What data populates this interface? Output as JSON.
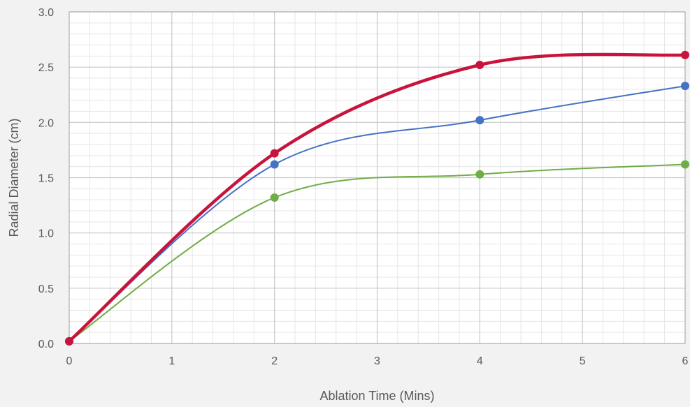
{
  "chart_data": {
    "type": "line",
    "title": "",
    "xlabel": "Ablation Time (Mins)",
    "ylabel": "Radial Diameter (cm)",
    "x_ticks": [
      "0",
      "1",
      "2",
      "3",
      "4",
      "5",
      "6"
    ],
    "y_ticks": [
      "0.0",
      "0.5",
      "1.0",
      "1.5",
      "2.0",
      "2.5",
      "3.0"
    ],
    "xlim": [
      0,
      6
    ],
    "ylim": [
      0,
      3
    ],
    "grid": true,
    "minor_grid": true,
    "legend": "none",
    "smoothed": true,
    "x": [
      0,
      2,
      4,
      6
    ],
    "series": [
      {
        "values": [
          0.02,
          1.72,
          2.52,
          2.61
        ],
        "color": "#c8143c",
        "emphasis": "thick"
      },
      {
        "values": [
          0.02,
          1.62,
          2.02,
          2.33
        ],
        "color": "#4472c4",
        "emphasis": "normal"
      },
      {
        "values": [
          0.02,
          1.32,
          1.53,
          1.62
        ],
        "color": "#70ad47",
        "emphasis": "normal"
      }
    ]
  }
}
